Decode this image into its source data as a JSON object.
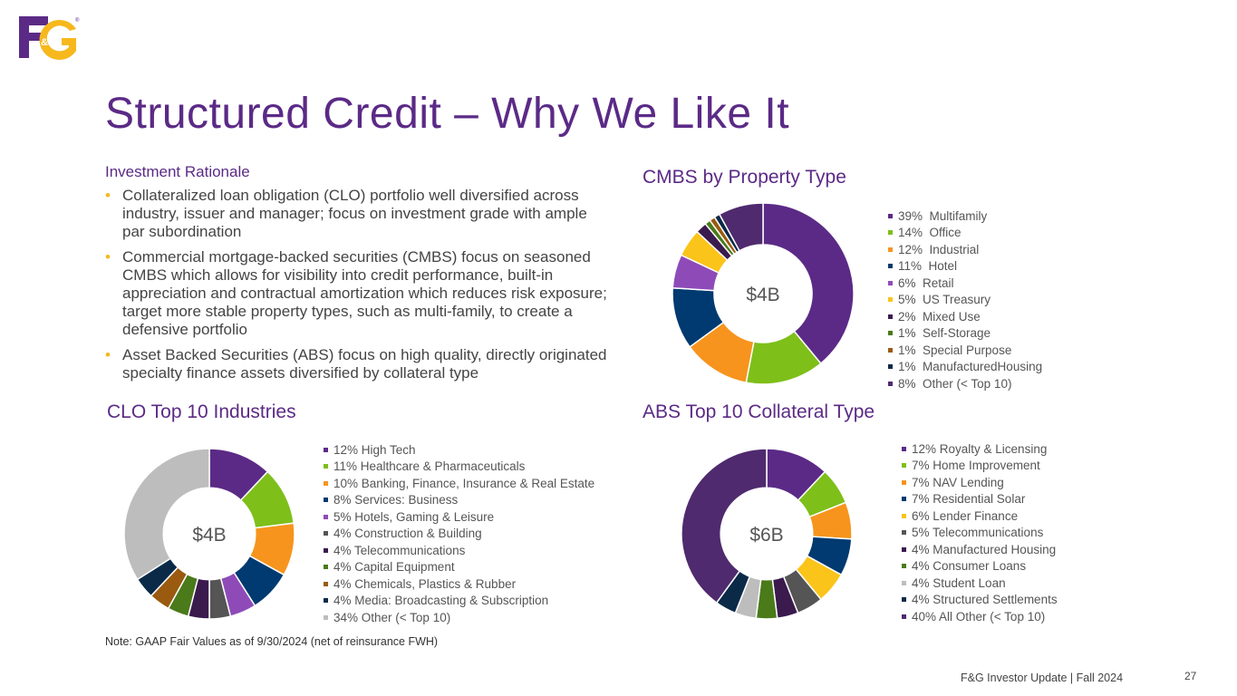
{
  "logo": {
    "text": "F&G",
    "registered": "®",
    "colors": {
      "primary": "#5b2a86",
      "accent": "#f6b81c"
    }
  },
  "page_title": "Structured Credit – Why We Like It",
  "rationale": {
    "heading": "Investment Rationale",
    "bullets": [
      "Collateralized loan obligation (CLO) portfolio well diversified across industry, issuer and manager; focus on investment grade with ample par subordination",
      "Commercial mortgage-backed securities (CMBS) focus on seasoned CMBS which allows for visibility into credit performance, built-in appreciation and contractual amortization which reduces risk exposure; target more stable property types, such as multi-family, to create a defensive portfolio",
      "Asset Backed Securities (ABS) focus on high quality, directly originated specialty finance assets diversified by collateral type"
    ]
  },
  "note": "Note: GAAP Fair Values as of 9/30/2024 (net of reinsurance FWH)",
  "footer": "F&G Investor Update | Fall 2024",
  "page_number": "27",
  "chart_data": [
    {
      "type": "pie",
      "donut": true,
      "title": "CMBS by Property Type",
      "center_label": "$4B",
      "legend_position": "right",
      "series": [
        {
          "label": "39%  Multifamily",
          "value": 39,
          "color": "#5b2a86"
        },
        {
          "label": "14%  Office",
          "value": 14,
          "color": "#7ebf1a"
        },
        {
          "label": "12%  Industrial",
          "value": 12,
          "color": "#f7941d"
        },
        {
          "label": "11%  Hotel",
          "value": 11,
          "color": "#003a70"
        },
        {
          "label": "6%  Retail",
          "value": 6,
          "color": "#8e4bb8"
        },
        {
          "label": "5%  US Treasury",
          "value": 5,
          "color": "#fbc41a"
        },
        {
          "label": "2%  Mixed Use",
          "value": 2,
          "color": "#3b1a4e"
        },
        {
          "label": "1%  Self-Storage",
          "value": 1,
          "color": "#4a7a1a"
        },
        {
          "label": "1%  Special Purpose",
          "value": 1,
          "color": "#9a5a10"
        },
        {
          "label": "1%  ManufacturedHousing",
          "value": 1,
          "color": "#0a2a48"
        },
        {
          "label": "8%  Other (< Top 10)",
          "value": 8,
          "color": "#4f2a6e"
        }
      ]
    },
    {
      "type": "pie",
      "donut": true,
      "title": "CLO Top 10 Industries",
      "center_label": "$4B",
      "legend_position": "right",
      "series": [
        {
          "label": "12% High Tech",
          "value": 12,
          "color": "#5b2a86"
        },
        {
          "label": "11% Healthcare & Pharmaceuticals",
          "value": 11,
          "color": "#7ebf1a"
        },
        {
          "label": "10% Banking, Finance, Insurance & Real Estate",
          "value": 10,
          "color": "#f7941d"
        },
        {
          "label": "8% Services: Business",
          "value": 8,
          "color": "#003a70"
        },
        {
          "label": "5% Hotels, Gaming & Leisure",
          "value": 5,
          "color": "#8e4bb8"
        },
        {
          "label": "4% Construction & Building",
          "value": 4,
          "color": "#555555"
        },
        {
          "label": "4% Telecommunications",
          "value": 4,
          "color": "#3b1a4e"
        },
        {
          "label": "4% Capital Equipment",
          "value": 4,
          "color": "#4a7a1a"
        },
        {
          "label": "4% Chemicals, Plastics & Rubber",
          "value": 4,
          "color": "#9a5a10"
        },
        {
          "label": "4% Media: Broadcasting & Subscription",
          "value": 4,
          "color": "#0a2a48"
        },
        {
          "label": "34% Other (< Top 10)",
          "value": 34,
          "color": "#bdbdbd"
        }
      ]
    },
    {
      "type": "pie",
      "donut": true,
      "title": "ABS Top 10 Collateral Type",
      "center_label": "$6B",
      "legend_position": "right",
      "series": [
        {
          "label": "12% Royalty & Licensing",
          "value": 12,
          "color": "#5b2a86"
        },
        {
          "label": "7% Home Improvement",
          "value": 7,
          "color": "#7ebf1a"
        },
        {
          "label": "7% NAV Lending",
          "value": 7,
          "color": "#f7941d"
        },
        {
          "label": "7% Residential Solar",
          "value": 7,
          "color": "#003a70"
        },
        {
          "label": "6% Lender Finance",
          "value": 6,
          "color": "#fbc41a"
        },
        {
          "label": "5% Telecommunications",
          "value": 5,
          "color": "#555555"
        },
        {
          "label": "4% Manufactured Housing",
          "value": 4,
          "color": "#3b1a4e"
        },
        {
          "label": "4% Consumer Loans",
          "value": 4,
          "color": "#4a7a1a"
        },
        {
          "label": "4% Student Loan",
          "value": 4,
          "color": "#bdbdbd"
        },
        {
          "label": "4% Structured Settlements",
          "value": 4,
          "color": "#0a2a48"
        },
        {
          "label": "40% All Other (< Top 10)",
          "value": 40,
          "color": "#4f2a6e"
        }
      ]
    }
  ]
}
